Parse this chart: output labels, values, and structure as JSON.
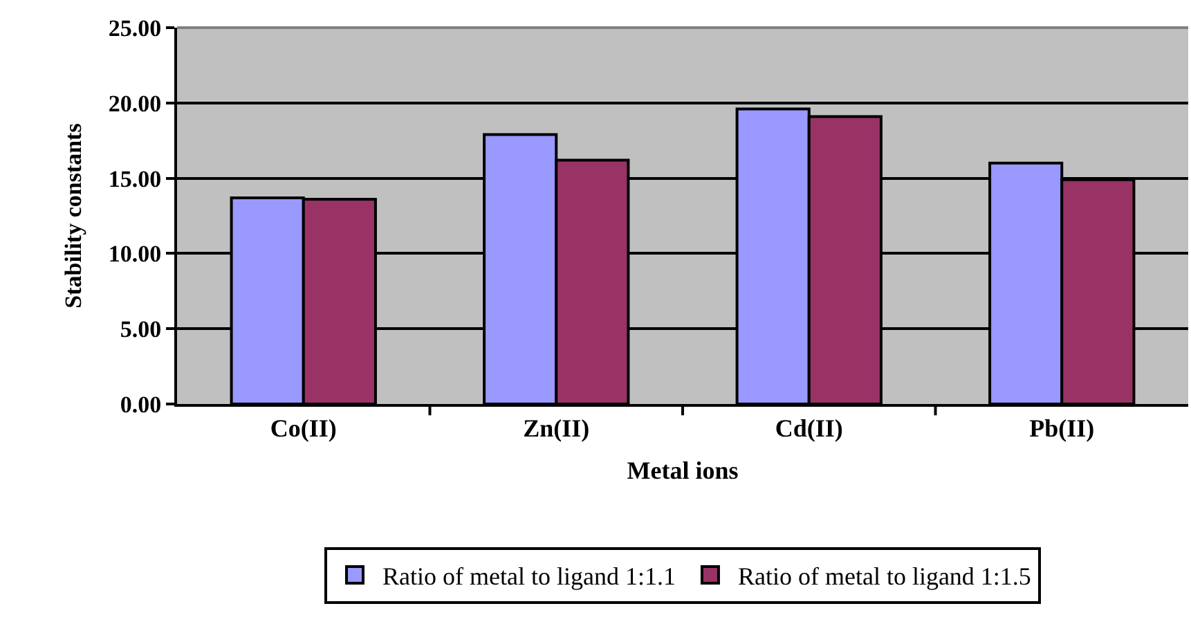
{
  "chart_data": {
    "type": "bar",
    "xlabel": "Metal ions",
    "ylabel": "Stability constants",
    "categories": [
      "Co(II)",
      "Zn(II)",
      "Cd(II)",
      "Pb(II)"
    ],
    "series": [
      {
        "name": "Ratio of metal to ligand 1:1.1",
        "color": "#9999ff",
        "values": [
          13.7,
          17.9,
          19.6,
          16.0
        ]
      },
      {
        "name": "Ratio of metal to ligand 1:1.5",
        "color": "#993366",
        "values": [
          13.6,
          16.2,
          19.1,
          14.9
        ]
      }
    ],
    "ylim": [
      0,
      25
    ],
    "yticks": [
      {
        "value": 0,
        "label": "0.00"
      },
      {
        "value": 5,
        "label": "5.00"
      },
      {
        "value": 10,
        "label": "10.00"
      },
      {
        "value": 15,
        "label": "15.00"
      },
      {
        "value": 20,
        "label": "20.00"
      },
      {
        "value": 25,
        "label": "25.00"
      }
    ],
    "grid": "y",
    "legend": "bottom"
  }
}
